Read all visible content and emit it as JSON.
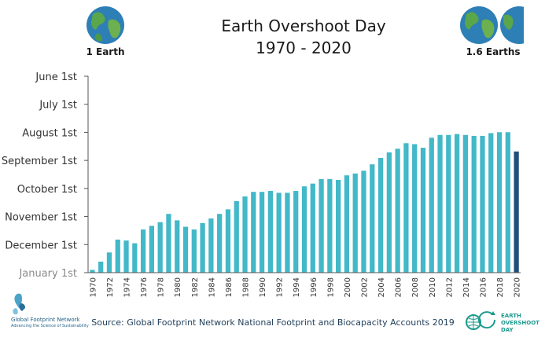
{
  "chart_data": {
    "type": "bar",
    "title_line1": "Earth Overshoot Day",
    "title_line2": "1970 - 2020",
    "y_axis_labels": [
      "June 1st",
      "July 1st",
      "August 1st",
      "September 1st",
      "October 1st",
      "November 1st",
      "December 1st",
      "January 1st"
    ],
    "x": [
      1970,
      1971,
      1972,
      1973,
      1974,
      1975,
      1976,
      1977,
      1978,
      1979,
      1980,
      1981,
      1982,
      1983,
      1984,
      1985,
      1986,
      1987,
      1988,
      1989,
      1990,
      1991,
      1992,
      1993,
      1994,
      1995,
      1996,
      1997,
      1998,
      1999,
      2000,
      2001,
      2002,
      2003,
      2004,
      2005,
      2006,
      2007,
      2008,
      2009,
      2010,
      2011,
      2012,
      2013,
      2014,
      2015,
      2016,
      2017,
      2018,
      2019,
      2020
    ],
    "x_tick_labels": [
      "1970",
      "1972",
      "1974",
      "1976",
      "1978",
      "1980",
      "1982",
      "1984",
      "1986",
      "1988",
      "1990",
      "1992",
      "1994",
      "1996",
      "1998",
      "2000",
      "2002",
      "2004",
      "2006",
      "2008",
      "2010",
      "2012",
      "2014",
      "2016",
      "2018",
      "2020"
    ],
    "values": [
      "December 29",
      "December 20",
      "December 10",
      "November 26",
      "November 27",
      "November 30",
      "November 15",
      "November 11",
      "November 7",
      "October 29",
      "November 5",
      "November 12",
      "November 15",
      "November 8",
      "November 3",
      "October 29",
      "October 24",
      "October 15",
      "October 10",
      "October 5",
      "October 5",
      "October 4",
      "October 6",
      "October 6",
      "October 4",
      "September 29",
      "September 26",
      "September 21",
      "September 21",
      "September 22",
      "September 17",
      "September 15",
      "September 12",
      "September 5",
      "August 29",
      "August 23",
      "August 19",
      "August 13",
      "August 14",
      "August 18",
      "August 7",
      "August 4",
      "August 4",
      "August 3",
      "August 4",
      "August 5",
      "August 5",
      "August 2",
      "August 1",
      "August 1",
      "August 22"
    ],
    "ylim": [
      "June 1",
      "January 1"
    ],
    "highlight": "2020",
    "colors": {
      "bars": "#42b8c8",
      "highlight": "#1f4e79"
    }
  },
  "header": {
    "left_label": "1 Earth",
    "right_label": "1.6 Earths"
  },
  "footer": {
    "source": "Source: Global Footprint Network National Footprint and Biocapacity Accounts 2019",
    "left_logo_name": "Global Footprint Network",
    "left_logo_sub": "Advancing the Science of Sustainability",
    "right_logo_lines": [
      "EARTH",
      "OVERSHOOT",
      "DAY"
    ]
  }
}
